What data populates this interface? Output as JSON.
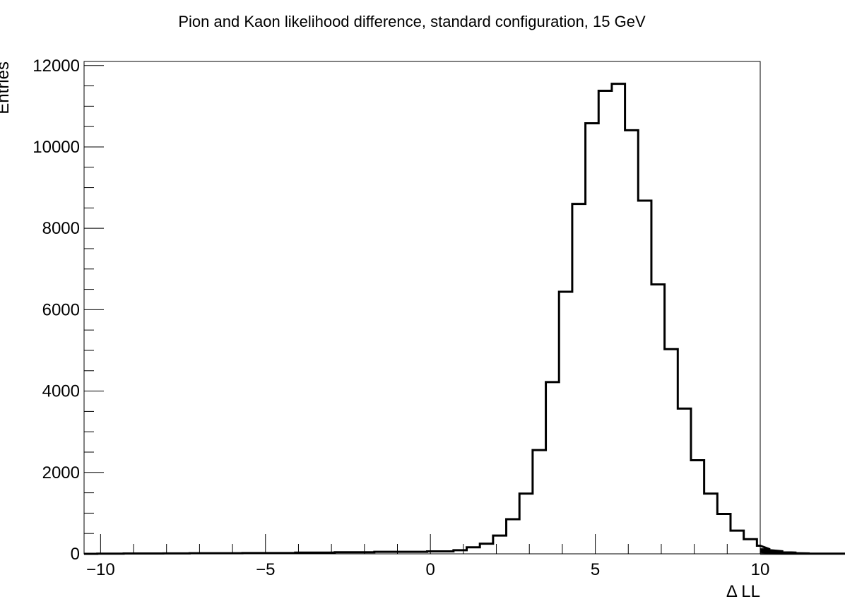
{
  "chart_data": {
    "type": "bar",
    "title": "Pion and Kaon likelihood difference, standard configuration, 15 GeV",
    "xlabel": "Δ LL",
    "ylabel": "Entries",
    "xlim": [
      -10.5,
      10
    ],
    "ylim": [
      0,
      12100
    ],
    "x_ticks": [
      -10,
      -5,
      0,
      5,
      10
    ],
    "x_tick_labels": [
      "−10",
      "−5",
      "0",
      "5",
      "10"
    ],
    "y_ticks": [
      0,
      2000,
      4000,
      6000,
      8000,
      10000,
      12000
    ],
    "y_tick_labels": [
      "0",
      "2000",
      "4000",
      "6000",
      "8000",
      "10000",
      "12000"
    ],
    "grid": false,
    "legend": "none",
    "line_color": "#000000",
    "bin_width": 0.4,
    "bin_edges_start": -10.5,
    "values": [
      0,
      5,
      5,
      8,
      8,
      8,
      10,
      10,
      15,
      15,
      15,
      15,
      20,
      20,
      20,
      20,
      30,
      30,
      30,
      40,
      40,
      40,
      50,
      50,
      50,
      50,
      60,
      60,
      90,
      160,
      250,
      450,
      850,
      1480,
      2550,
      4220,
      6440,
      8600,
      10580,
      11380,
      11550,
      10410,
      8680,
      6620,
      5030,
      3570,
      2300,
      1480,
      980,
      570,
      360,
      200,
      110,
      60,
      30,
      10,
      5,
      5,
      5,
      5,
      5
    ]
  }
}
